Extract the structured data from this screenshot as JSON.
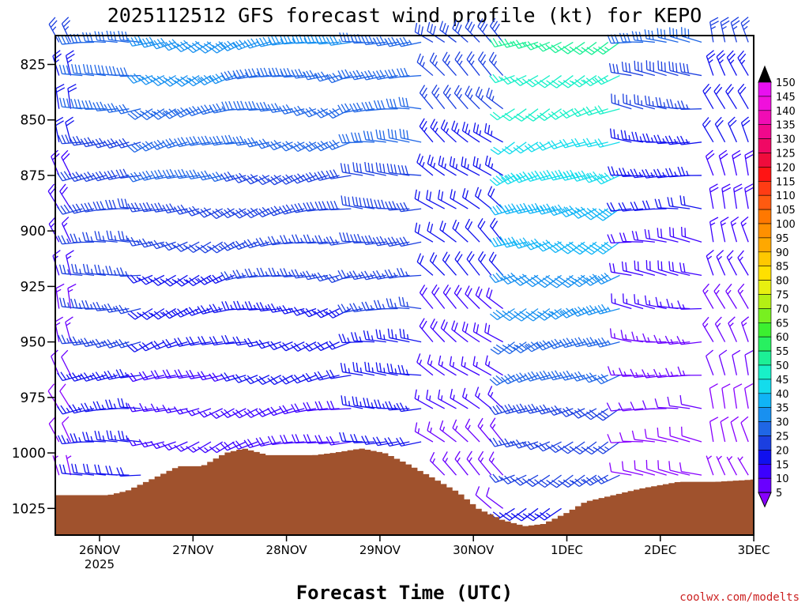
{
  "chart_data": {
    "type": "wind-barb-time-height",
    "title": "2025112512 GFS forecast wind profile (kt) for KEPO",
    "xlabel": "Forecast Time (UTC)",
    "ylabel": "",
    "credit": "coolwx.com/modelts",
    "x_ticks": [
      {
        "day": 0,
        "label": "26NOV",
        "sub": "2025"
      },
      {
        "day": 1,
        "label": "27NOV",
        "sub": ""
      },
      {
        "day": 2,
        "label": "28NOV",
        "sub": ""
      },
      {
        "day": 3,
        "label": "29NOV",
        "sub": ""
      },
      {
        "day": 4,
        "label": "30NOV",
        "sub": ""
      },
      {
        "day": 5,
        "label": "1DEC",
        "sub": ""
      },
      {
        "day": 6,
        "label": "2DEC",
        "sub": ""
      },
      {
        "day": 7,
        "label": "3DEC",
        "sub": ""
      }
    ],
    "y_ticks": [
      825,
      850,
      875,
      900,
      925,
      950,
      975,
      1000,
      1025
    ],
    "ylim": [
      1037,
      812
    ],
    "pressure_levels": [
      815,
      830,
      845,
      860,
      875,
      890,
      905,
      920,
      935,
      950,
      965,
      980,
      995,
      1010,
      1025
    ],
    "colorbar": {
      "levels": [
        5,
        10,
        15,
        20,
        25,
        30,
        35,
        40,
        45,
        50,
        55,
        60,
        65,
        70,
        75,
        80,
        85,
        90,
        95,
        100,
        105,
        110,
        115,
        120,
        125,
        130,
        135,
        140,
        145,
        150
      ],
      "colors": [
        "#8800ff",
        "#6a00ff",
        "#3c00ff",
        "#1010ee",
        "#1b3fe0",
        "#1f66e6",
        "#1890f0",
        "#10b4f6",
        "#14dcec",
        "#18f0c8",
        "#1cf096",
        "#28f060",
        "#3cf030",
        "#78f020",
        "#b4f014",
        "#e8f010",
        "#ffe000",
        "#ffc800",
        "#ffa800",
        "#ff9000",
        "#ff7800",
        "#ff5a10",
        "#ff3c14",
        "#ff1414",
        "#f00c3c",
        "#f00864",
        "#f0088c",
        "#f00cb4",
        "#f010dc",
        "#e810f0"
      ],
      "overflow_color": "#000000"
    },
    "terrain": {
      "color": "#a0522d",
      "surface_pressure": [
        {
          "day": -0.25,
          "p": 1019
        },
        {
          "day": 0.1,
          "p": 1019
        },
        {
          "day": 0.3,
          "p": 1017
        },
        {
          "day": 0.5,
          "p": 1013
        },
        {
          "day": 0.7,
          "p": 1009
        },
        {
          "day": 0.85,
          "p": 1006
        },
        {
          "day": 1.1,
          "p": 1006
        },
        {
          "day": 1.35,
          "p": 1000
        },
        {
          "day": 1.55,
          "p": 998
        },
        {
          "day": 1.8,
          "p": 1001
        },
        {
          "day": 2.3,
          "p": 1001
        },
        {
          "day": 2.5,
          "p": 1000
        },
        {
          "day": 2.8,
          "p": 998
        },
        {
          "day": 3.05,
          "p": 1000
        },
        {
          "day": 3.3,
          "p": 1005
        },
        {
          "day": 3.6,
          "p": 1012
        },
        {
          "day": 3.85,
          "p": 1018
        },
        {
          "day": 4.05,
          "p": 1025
        },
        {
          "day": 4.3,
          "p": 1030
        },
        {
          "day": 4.55,
          "p": 1033
        },
        {
          "day": 4.75,
          "p": 1032
        },
        {
          "day": 5.0,
          "p": 1027
        },
        {
          "day": 5.2,
          "p": 1022
        },
        {
          "day": 5.5,
          "p": 1019
        },
        {
          "day": 5.8,
          "p": 1016
        },
        {
          "day": 6.2,
          "p": 1013
        },
        {
          "day": 6.6,
          "p": 1013
        },
        {
          "day": 7.0,
          "p": 1012
        }
      ]
    },
    "wind_regimes": [
      {
        "from_day": -0.25,
        "to_day": 0.45,
        "p_top": 815,
        "p_bottom": 1010,
        "dir_deg": 265,
        "speed_top_kt": 32,
        "speed_bottom_kt": 22
      },
      {
        "from_day": 0.45,
        "to_day": 1.45,
        "p_top": 815,
        "p_bottom": 1005,
        "dir_deg": 250,
        "speed_top_kt": 38,
        "speed_bottom_kt": 14
      },
      {
        "from_day": 1.45,
        "to_day": 2.7,
        "p_top": 815,
        "p_bottom": 998,
        "dir_deg": 255,
        "speed_top_kt": 35,
        "speed_bottom_kt": 18
      },
      {
        "from_day": 2.7,
        "to_day": 3.55,
        "p_top": 815,
        "p_bottom": 1000,
        "dir_deg": 270,
        "speed_top_kt": 33,
        "speed_bottom_kt": 22
      },
      {
        "from_day": 3.55,
        "to_day": 4.35,
        "p_top": 815,
        "p_bottom": 1025,
        "dir_deg": 310,
        "speed_top_kt": 28,
        "speed_bottom_kt": 12
      },
      {
        "from_day": 4.35,
        "to_day": 5.65,
        "p_top": 815,
        "p_bottom": 1030,
        "dir_deg": 245,
        "speed_top_kt": 55,
        "speed_bottom_kt": 22
      },
      {
        "from_day": 5.65,
        "to_day": 6.5,
        "p_top": 815,
        "p_bottom": 1012,
        "dir_deg": 275,
        "speed_top_kt": 30,
        "speed_bottom_kt": 8
      },
      {
        "from_day": 6.5,
        "to_day": 7.0,
        "p_top": 815,
        "p_bottom": 1012,
        "dir_deg": 340,
        "speed_top_kt": 25,
        "speed_bottom_kt": 7
      }
    ],
    "grid": false,
    "legend_position": "right"
  }
}
